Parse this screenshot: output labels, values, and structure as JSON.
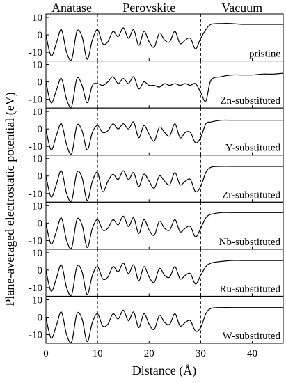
{
  "chart_data": {
    "type": "line",
    "xlabel": "Distance (Å)",
    "ylabel": "Plane-averaged electrostatic potential (eV)",
    "xlim": [
      0,
      46
    ],
    "ylim": [
      -15,
      12
    ],
    "x_ticks": [
      0,
      10,
      20,
      30,
      40
    ],
    "y_ticks": [
      10,
      0,
      -10
    ],
    "regions": [
      {
        "label": "Anatase",
        "from": 0,
        "to": 10
      },
      {
        "label": "Perovskite",
        "from": 10,
        "to": 30
      },
      {
        "label": "Vacuum",
        "from": 30,
        "to": 46
      }
    ],
    "boundaries": [
      10,
      30
    ],
    "series": [
      {
        "name": "pristine",
        "x": [
          0,
          1,
          2,
          3,
          4,
          5,
          6,
          7,
          8,
          9,
          10,
          11,
          12,
          13,
          14,
          15,
          16,
          17,
          18,
          19,
          20,
          21,
          22,
          23,
          24,
          25,
          26,
          27,
          28,
          29,
          30,
          31,
          32,
          34,
          36,
          38,
          40,
          42,
          44,
          46
        ],
        "y": [
          0,
          -12,
          -5,
          3,
          -10,
          -14,
          2,
          -1,
          -14,
          -3,
          3,
          -5,
          -4,
          2,
          -1,
          4,
          -2,
          3,
          -6,
          2,
          -4,
          -7,
          1,
          -3,
          -4,
          2,
          -5,
          -3,
          -2,
          -8,
          -2,
          3,
          6,
          6.5,
          6.5,
          6,
          6,
          6,
          6,
          6
        ]
      },
      {
        "name": "Zn-substituted",
        "x": [
          0,
          1,
          2,
          3,
          4,
          5,
          6,
          7,
          8,
          9,
          10,
          11,
          12,
          13,
          14,
          15,
          16,
          17,
          18,
          19,
          20,
          21,
          22,
          23,
          24,
          25,
          26,
          27,
          28,
          29,
          30,
          31,
          32,
          34,
          36,
          38,
          40,
          42,
          44,
          46
        ],
        "y": [
          0,
          -12,
          -5,
          2,
          -10,
          -14,
          2,
          -2,
          -12,
          -2,
          -1,
          -2,
          0,
          3,
          -1,
          2,
          -1,
          3,
          -4,
          0,
          -2,
          -2,
          -3,
          -1,
          -2,
          -1,
          -2,
          -1,
          -2,
          -1,
          -6,
          -11,
          1,
          3,
          4,
          4,
          4,
          4.5,
          4.5,
          5
        ]
      },
      {
        "name": "Y-substituted",
        "x": [
          0,
          1,
          2,
          3,
          4,
          5,
          6,
          7,
          8,
          9,
          10,
          11,
          12,
          13,
          14,
          15,
          16,
          17,
          18,
          19,
          20,
          21,
          22,
          23,
          24,
          25,
          26,
          27,
          28,
          29,
          30,
          31,
          32,
          34,
          36,
          38,
          40,
          42,
          44,
          46
        ],
        "y": [
          0,
          -12,
          -4,
          3,
          -9,
          -14,
          2,
          -1,
          -12,
          -2,
          2,
          -2,
          -1,
          3,
          0,
          3,
          0,
          4,
          -5,
          2,
          -3,
          -7,
          1,
          -2,
          -4,
          3,
          -5,
          -2,
          -2,
          -8,
          -5,
          3,
          4,
          5,
          5,
          5,
          5,
          5,
          5,
          5
        ]
      },
      {
        "name": "Zr-substituted",
        "x": [
          0,
          1,
          2,
          3,
          4,
          5,
          6,
          7,
          8,
          9,
          10,
          11,
          12,
          13,
          14,
          15,
          16,
          17,
          18,
          19,
          20,
          21,
          22,
          23,
          24,
          25,
          26,
          27,
          28,
          29,
          30,
          31,
          32,
          34,
          36,
          38,
          40,
          42,
          44,
          46
        ],
        "y": [
          0,
          -12,
          -5,
          3,
          -10,
          -14,
          2,
          -1,
          -14,
          -3,
          2,
          -9,
          -3,
          1,
          -2,
          3,
          -2,
          2,
          -6,
          1,
          -3,
          -7,
          0,
          -3,
          -5,
          2,
          -5,
          -3,
          -2,
          -9,
          -6,
          2,
          5,
          5.5,
          5.5,
          5.5,
          5.5,
          5.5,
          5.5,
          5.5
        ]
      },
      {
        "name": "Nb-substituted",
        "x": [
          0,
          1,
          2,
          3,
          4,
          5,
          6,
          7,
          8,
          9,
          10,
          11,
          12,
          13,
          14,
          15,
          16,
          17,
          18,
          19,
          20,
          21,
          22,
          23,
          24,
          25,
          26,
          27,
          28,
          29,
          30,
          31,
          32,
          34,
          36,
          38,
          40,
          42,
          44,
          46
        ],
        "y": [
          0,
          -12,
          -5,
          3,
          -10,
          -14,
          2,
          -1,
          -14,
          -3,
          2,
          -4,
          -3,
          2,
          -1,
          4,
          -2,
          3,
          -6,
          2,
          -4,
          -7,
          1,
          -3,
          -4,
          2,
          -5,
          -3,
          -2,
          -8,
          -3,
          3,
          5,
          6,
          6,
          6,
          6,
          6,
          6,
          6
        ]
      },
      {
        "name": "Ru-substituted",
        "x": [
          0,
          1,
          2,
          3,
          4,
          5,
          6,
          7,
          8,
          9,
          10,
          11,
          12,
          13,
          14,
          15,
          16,
          17,
          18,
          19,
          20,
          21,
          22,
          23,
          24,
          25,
          26,
          27,
          28,
          29,
          30,
          31,
          32,
          34,
          36,
          38,
          40,
          42,
          44,
          46
        ],
        "y": [
          0,
          -12,
          -5,
          3,
          -10,
          -14,
          2,
          -1,
          -14,
          -3,
          2,
          -5,
          -4,
          2,
          -1,
          4,
          -2,
          3,
          -6,
          2,
          -4,
          -7,
          1,
          -3,
          -4,
          2,
          -5,
          -3,
          -2,
          -8,
          -3,
          2,
          4,
          5,
          5.5,
          5.5,
          5.5,
          5.5,
          5.5,
          5.5
        ]
      },
      {
        "name": "W-substituted",
        "x": [
          0,
          1,
          2,
          3,
          4,
          5,
          6,
          7,
          8,
          9,
          10,
          11,
          12,
          13,
          14,
          15,
          16,
          17,
          18,
          19,
          20,
          21,
          22,
          23,
          24,
          25,
          26,
          27,
          28,
          29,
          30,
          31,
          32,
          34,
          36,
          38,
          40,
          42,
          44,
          46
        ],
        "y": [
          0,
          -12,
          -5,
          3,
          -10,
          -14,
          2,
          -1,
          -14,
          -3,
          2,
          -5,
          -4,
          2,
          -1,
          4,
          -2,
          3,
          -6,
          2,
          -4,
          -7,
          1,
          -3,
          -4,
          2,
          -5,
          -3,
          -2,
          -8,
          -6,
          2,
          5,
          5.5,
          5.5,
          5.5,
          5.5,
          5.5,
          5.5,
          5.5
        ]
      }
    ]
  }
}
